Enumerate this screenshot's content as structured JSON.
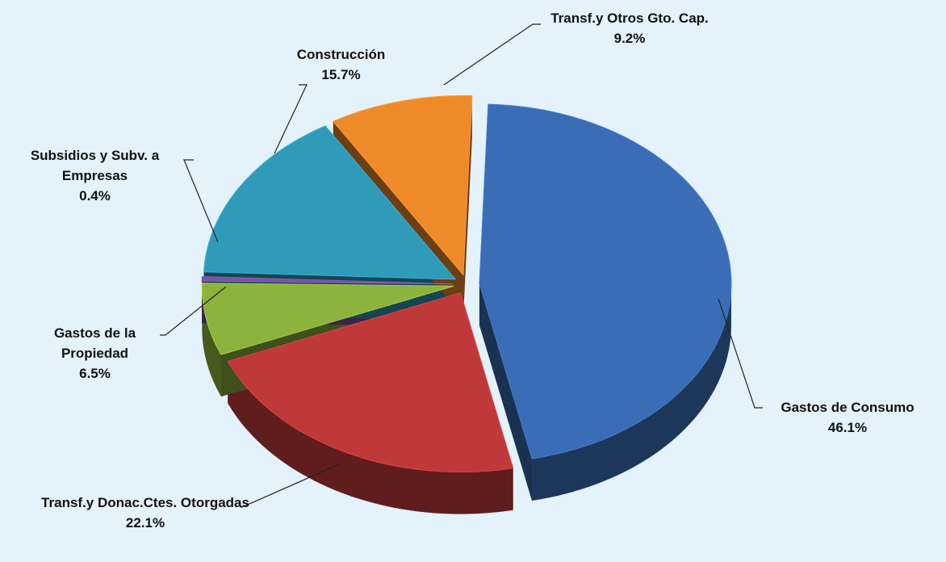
{
  "chart_data": {
    "type": "pie",
    "categories": [
      "Gastos de Consumo",
      "Transf.y Donac.Ctes. Otorgadas",
      "Gastos de la Propiedad",
      "Subsidios y Subv. a Empresas",
      "Construcción",
      "Transf.y Otros Gto. Cap."
    ],
    "values": [
      46.1,
      22.1,
      6.5,
      0.4,
      15.7,
      9.2
    ],
    "value_labels": [
      "46.1%",
      "22.1%",
      "6.5%",
      "0.4%",
      "15.7%",
      "9.2%"
    ],
    "colors": [
      "#3a6db5",
      "#c0393a",
      "#8cb43c",
      "#7b52a3",
      "#2f9bb8",
      "#ef8a2a"
    ]
  }
}
